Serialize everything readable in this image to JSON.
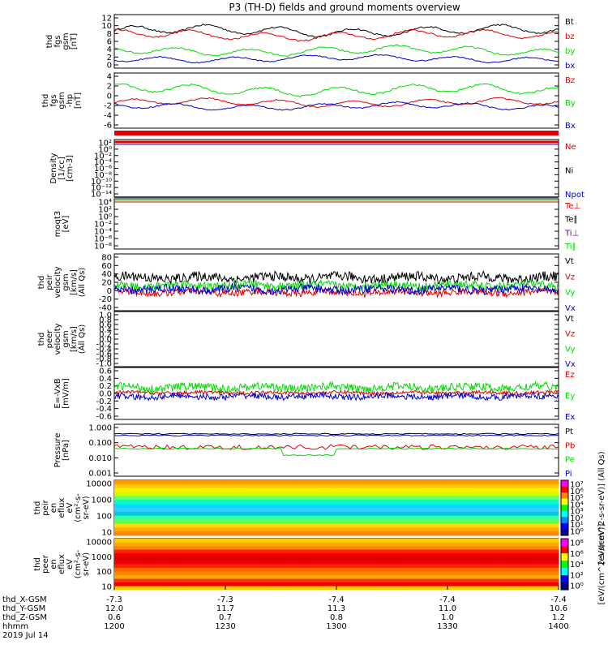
{
  "title": "P3 (TH-D) fields and ground moments overview",
  "colors": {
    "black": "#000000",
    "red": "#e00000",
    "green": "#00dd00",
    "blue": "#0000cc",
    "purple": "#660066"
  },
  "chart_data": [
    {
      "id": "fgs",
      "type": "line",
      "ylabel": [
        "thd",
        "fgs",
        "gsm",
        "[nT]"
      ],
      "yticks": [
        "12",
        "10",
        "8",
        "6",
        "4",
        "2",
        "0"
      ],
      "ylim": [
        0,
        12
      ],
      "series": [
        {
          "name": "Bt",
          "color": "black",
          "base": 8.7,
          "amp": 1.8
        },
        {
          "name": "bz",
          "color": "red",
          "base": 7.6,
          "amp": 1.7
        },
        {
          "name": "by",
          "color": "green",
          "base": 3.6,
          "amp": 1.6
        },
        {
          "name": "bx",
          "color": "blue",
          "base": 1.6,
          "amp": 1.2
        }
      ]
    },
    {
      "id": "fgs_hp",
      "type": "line",
      "ylabel": [
        "thd",
        "fgs",
        "gsm",
        "-hp",
        "[nT]"
      ],
      "yticks": [
        "4",
        "2",
        "0",
        "-2",
        "-4",
        "-6"
      ],
      "ylim": [
        -7,
        5
      ],
      "series": [
        {
          "name": "Bz",
          "color": "red",
          "base": -1.5,
          "amp": 1.3
        },
        {
          "name": "By",
          "color": "green",
          "base": 1.6,
          "amp": 1.8
        },
        {
          "name": "Bx",
          "color": "blue",
          "base": -2.4,
          "amp": 1.2
        }
      ]
    },
    {
      "id": "density",
      "type": "line",
      "ylabel": [
        "Density",
        "[1/cc]",
        "[cm-3]"
      ],
      "yticks": [
        "10²",
        "10⁰",
        "10⁻²",
        "10⁻⁴",
        "10⁻⁶",
        "10⁻⁸",
        "10⁻¹⁰",
        "10⁻¹²",
        "10⁻¹⁴"
      ],
      "series": [
        {
          "name": "Ne",
          "color": "red"
        },
        {
          "name": "Ni",
          "color": "black"
        },
        {
          "name": "Npot",
          "color": "blue"
        }
      ]
    },
    {
      "id": "temp",
      "type": "line",
      "ylabel": [
        "moqt3",
        "[eV]"
      ],
      "yticks": [
        "10⁴",
        "10²",
        "10⁰",
        "10⁻²",
        "10⁻⁴",
        "10⁻⁶",
        "10⁻⁸"
      ],
      "series": [
        {
          "name": "Te⊥",
          "color": "red"
        },
        {
          "name": "Te∥",
          "color": "black"
        },
        {
          "name": "Ti⊥",
          "color": "purple"
        },
        {
          "name": "Ti∥",
          "color": "green"
        }
      ]
    },
    {
      "id": "peir_vel",
      "type": "line",
      "ylabel": [
        "thd",
        "peir",
        "velocity",
        "gsm",
        "[km/s]",
        "(All Qs)"
      ],
      "yticks": [
        "80",
        "60",
        "40",
        "20",
        "0",
        "-20",
        "-40"
      ],
      "ylim": [
        -45,
        85
      ],
      "series": [
        {
          "name": "Vt",
          "color": "black",
          "base": 32,
          "amp": 14
        },
        {
          "name": "Vz",
          "color": "red",
          "base": -6,
          "amp": 10
        },
        {
          "name": "Vy",
          "color": "green",
          "base": 12,
          "amp": 12
        },
        {
          "name": "Vx",
          "color": "blue",
          "base": 2,
          "amp": 12
        }
      ]
    },
    {
      "id": "peer_vel",
      "type": "line",
      "ylabel": [
        "thd",
        "peer",
        "velocity",
        "gsm",
        "[km/s]",
        "(All Qs)"
      ],
      "yticks": [
        "1.0",
        "0.8",
        "0.6",
        "0.4",
        "0.2",
        "0.0",
        "-0.2",
        "-0.4",
        "-0.6",
        "-0.8",
        "-1.0"
      ],
      "ylim": [
        -1,
        1
      ],
      "series": [
        {
          "name": "Vt",
          "color": "black"
        },
        {
          "name": "Vz",
          "color": "red"
        },
        {
          "name": "Vy",
          "color": "green"
        },
        {
          "name": "Vx",
          "color": "blue"
        }
      ]
    },
    {
      "id": "efield",
      "type": "line",
      "ylabel": [
        "E=-VxB",
        "[mV/m]"
      ],
      "yticks": [
        "0.6",
        "0.4",
        "0.2",
        "0.0",
        "-0.2",
        "-0.4",
        "-0.6"
      ],
      "ylim": [
        -0.6,
        0.6
      ],
      "series": [
        {
          "name": "Ez",
          "color": "red",
          "base": 0.02,
          "amp": 0.05
        },
        {
          "name": "Ey",
          "color": "green",
          "base": 0.16,
          "amp": 0.12
        },
        {
          "name": "Ex",
          "color": "blue",
          "base": -0.08,
          "amp": 0.09
        }
      ]
    },
    {
      "id": "pressure",
      "type": "line",
      "ylabel": [
        "Pressure",
        "[nPa]"
      ],
      "yticks": [
        "1.000",
        "0.100",
        "0.010",
        "0.001"
      ],
      "series": [
        {
          "name": "Pt",
          "color": "black",
          "base": 0.2
        },
        {
          "name": "Pb",
          "color": "red",
          "base": 0.04
        },
        {
          "name": "Pe",
          "color": "green",
          "base": 0.03
        },
        {
          "name": "Pi",
          "color": "blue",
          "base": 0.17
        }
      ]
    },
    {
      "id": "peir_spec",
      "type": "heatmap",
      "ylabel": [
        "thd",
        "peir",
        "en",
        "eflux",
        "eV",
        "(cm²-s-",
        "sr-eV)"
      ],
      "yticks": [
        "10000",
        "1000",
        "100",
        "10"
      ],
      "colorbar_ticks": [
        "10⁷",
        "10⁶",
        "10⁵",
        "10⁴",
        "10³",
        "10²",
        "10¹",
        "10⁰"
      ],
      "colorbar_label": "[eV/(cm^2-s-sr-eV)] (All Qs)"
    },
    {
      "id": "peer_spec",
      "type": "heatmap",
      "ylabel": [
        "thd",
        "peer",
        "en",
        "eflux",
        "eV",
        "(cm²-s-",
        "sr-eV)"
      ],
      "yticks": [
        "10000",
        "1000",
        "100",
        "10"
      ],
      "colorbar_ticks": [
        "10⁸",
        "10⁶",
        "10⁴",
        "10²",
        "10⁰"
      ],
      "colorbar_label": "[eV/(cm^2-s-sr-eV)]"
    }
  ],
  "x_axis": {
    "rows": [
      {
        "label": "thd_X-GSM",
        "values": [
          "-7.3",
          "-7.3",
          "-7.4",
          "-7.4",
          "-7.4"
        ]
      },
      {
        "label": "thd_Y-GSM",
        "values": [
          "12.0",
          "11.7",
          "11.3",
          "11.0",
          "10.6"
        ]
      },
      {
        "label": "thd_Z-GSM",
        "values": [
          "0.6",
          "0.7",
          "0.8",
          "1.0",
          "1.2"
        ]
      },
      {
        "label": "hhmm",
        "values": [
          "1200",
          "1230",
          "1300",
          "1330",
          "1400"
        ]
      }
    ],
    "date": "2019 Jul 14"
  },
  "colorbar_label": "[eV/(cm^2-s-sr-eV)] (All Qs)"
}
